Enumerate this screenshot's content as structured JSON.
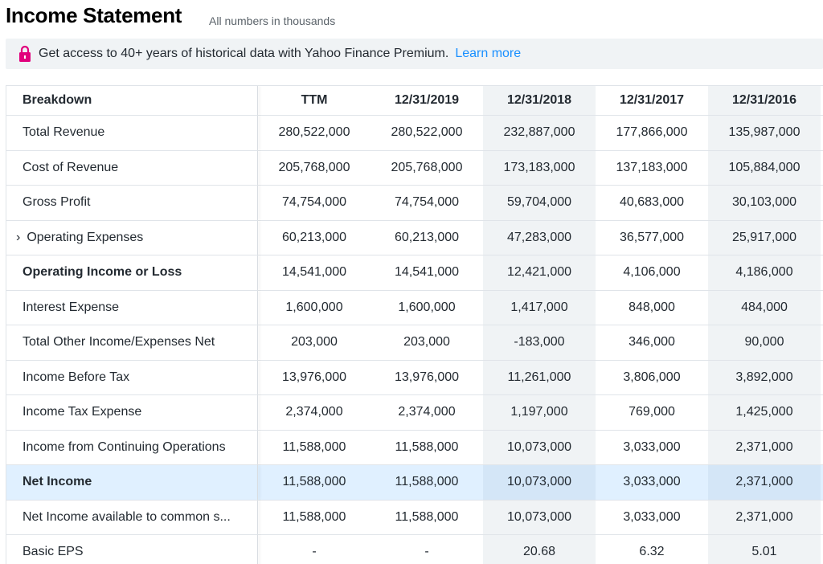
{
  "header": {
    "title": "Income Statement",
    "subtitle": "All numbers in thousands"
  },
  "banner": {
    "text": "Get access to 40+ years of historical data with Yahoo Finance Premium.",
    "link": "Learn more",
    "accent_color": "#188fff",
    "lock_color": "#e1017c"
  },
  "table": {
    "headers": [
      "Breakdown",
      "TTM",
      "12/31/2019",
      "12/31/2018",
      "12/31/2017",
      "12/31/2016"
    ],
    "rows": [
      {
        "label": "Total Revenue",
        "values": [
          "280,522,000",
          "280,522,000",
          "232,887,000",
          "177,866,000",
          "135,987,000"
        ]
      },
      {
        "label": "Cost of Revenue",
        "values": [
          "205,768,000",
          "205,768,000",
          "173,183,000",
          "137,183,000",
          "105,884,000"
        ]
      },
      {
        "label": "Gross Profit",
        "values": [
          "74,754,000",
          "74,754,000",
          "59,704,000",
          "40,683,000",
          "30,103,000"
        ]
      },
      {
        "label": "Operating Expenses",
        "expand_icon": "chevron-right-icon",
        "values": [
          "60,213,000",
          "60,213,000",
          "47,283,000",
          "36,577,000",
          "25,917,000"
        ]
      },
      {
        "label": "Operating Income or Loss",
        "bold": true,
        "values": [
          "14,541,000",
          "14,541,000",
          "12,421,000",
          "4,106,000",
          "4,186,000"
        ]
      },
      {
        "label": "Interest Expense",
        "values": [
          "1,600,000",
          "1,600,000",
          "1,417,000",
          "848,000",
          "484,000"
        ]
      },
      {
        "label": "Total Other Income/Expenses Net",
        "values": [
          "203,000",
          "203,000",
          "-183,000",
          "346,000",
          "90,000"
        ]
      },
      {
        "label": "Income Before Tax",
        "values": [
          "13,976,000",
          "13,976,000",
          "11,261,000",
          "3,806,000",
          "3,892,000"
        ]
      },
      {
        "label": "Income Tax Expense",
        "values": [
          "2,374,000",
          "2,374,000",
          "1,197,000",
          "769,000",
          "1,425,000"
        ]
      },
      {
        "label": "Income from Continuing Operations",
        "values": [
          "11,588,000",
          "11,588,000",
          "10,073,000",
          "3,033,000",
          "2,371,000"
        ]
      },
      {
        "label": "Net Income",
        "bold": true,
        "highlight": true,
        "values": [
          "11,588,000",
          "11,588,000",
          "10,073,000",
          "3,033,000",
          "2,371,000"
        ]
      },
      {
        "label": "Net Income available to common s...",
        "values": [
          "11,588,000",
          "11,588,000",
          "10,073,000",
          "3,033,000",
          "2,371,000"
        ]
      },
      {
        "label": "Basic EPS",
        "values": [
          "-",
          "-",
          "20.68",
          "6.32",
          "5.01"
        ]
      }
    ]
  }
}
